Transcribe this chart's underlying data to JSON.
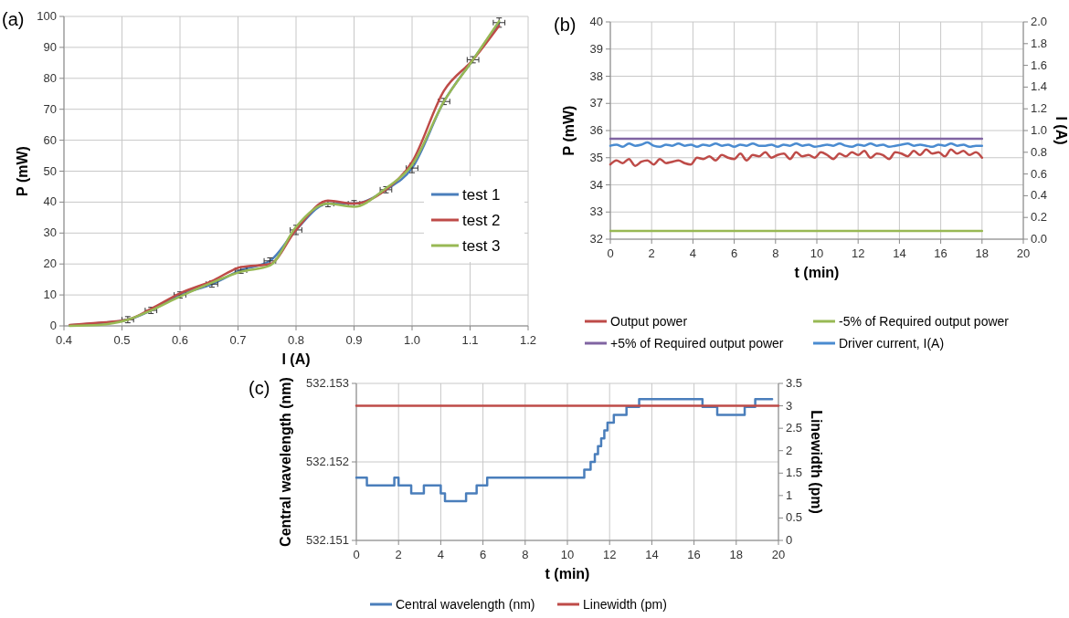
{
  "chart_data": [
    {
      "type": "line",
      "title": "(a)",
      "xlabel": "I (A)",
      "ylabel": "P (mW)",
      "xlim": [
        0.4,
        1.2
      ],
      "xticks": [
        0.4,
        0.5,
        0.6,
        0.7,
        0.8,
        0.9,
        {
          "value": 1,
          "label": "1.0"
        },
        1.1,
        1.2
      ],
      "ylim": [
        0,
        100
      ],
      "yticks": [
        0,
        10,
        20,
        30,
        40,
        50,
        60,
        70,
        80,
        90,
        100
      ],
      "grid": true,
      "legend": "bottom right",
      "x": [
        0.41,
        0.46,
        0.51,
        0.55,
        0.6,
        0.655,
        0.705,
        0.755,
        0.8,
        0.855,
        0.9,
        0.955,
        1.0,
        1.055,
        1.105,
        1.15
      ],
      "series": [
        {
          "name": "test 1",
          "color": "#4a7ebb",
          "values": [
            0.2,
            0.9,
            2,
            5,
            10,
            13.5,
            18,
            21,
            31,
            39.5,
            39.5,
            44,
            51,
            72.5,
            86,
            98
          ],
          "errors": [
            null,
            null,
            1,
            1,
            1,
            1,
            1,
            1,
            1.5,
            1,
            1,
            1,
            1.5,
            1,
            1,
            1.5
          ],
          "xerrors": [
            null,
            null,
            0.01,
            0.01,
            0.01,
            0.01,
            0.01,
            0.01,
            0.01,
            0.01,
            0.01,
            0.01,
            0.01,
            0.01,
            0.01,
            0.01
          ]
        },
        {
          "name": "test 2",
          "color": "#be4b48",
          "values": [
            0.3,
            1,
            2,
            5.5,
            10.5,
            14.5,
            19,
            20,
            31,
            40.5,
            39.5,
            44,
            53,
            76,
            86,
            97
          ]
        },
        {
          "name": "test 3",
          "color": "#98b954",
          "values": [
            0,
            0.3,
            2,
            5,
            9.5,
            14,
            17.5,
            19.5,
            32,
            39.5,
            38.5,
            44.5,
            52,
            72.5,
            86,
            98.5
          ]
        }
      ]
    },
    {
      "type": "line",
      "title": "(b)",
      "xlabel": "t (min)",
      "ylabel": "P (mW)",
      "y2label": "I (A)",
      "xlim": [
        0,
        20
      ],
      "xticks": [
        0,
        2,
        4,
        6,
        8,
        10,
        12,
        14,
        16,
        18,
        20
      ],
      "ylim": [
        32,
        40
      ],
      "yticks": [
        32,
        33,
        34,
        35,
        36,
        37,
        38,
        39,
        40
      ],
      "y2lim": [
        0,
        2
      ],
      "y2ticks": [
        {
          "value": 0,
          "label": "0.0"
        },
        0.2,
        0.4,
        0.6,
        0.8,
        {
          "value": 1,
          "label": "1.0"
        },
        1.2,
        1.4,
        1.6,
        1.8,
        {
          "value": 2,
          "label": "2.0"
        }
      ],
      "grid": true,
      "legend": "bottom",
      "x": [
        0,
        0.3,
        0.6,
        0.9,
        1.2,
        1.5,
        1.8,
        2.1,
        2.4,
        2.7,
        3,
        3.3,
        3.6,
        3.9,
        4.2,
        4.5,
        4.8,
        5.1,
        5.4,
        5.7,
        6,
        6.3,
        6.6,
        6.9,
        7.2,
        7.5,
        7.8,
        8.1,
        8.4,
        8.7,
        9,
        9.3,
        9.6,
        9.9,
        10.2,
        10.5,
        10.8,
        11.1,
        11.4,
        11.7,
        12,
        12.3,
        12.6,
        12.9,
        13.2,
        13.5,
        13.8,
        14.1,
        14.4,
        14.7,
        15,
        15.3,
        15.6,
        15.9,
        16.2,
        16.5,
        16.8,
        17.1,
        17.4,
        17.7,
        18
      ],
      "series": [
        {
          "name": "Output power",
          "color": "#be4b48",
          "values": [
            34.75,
            34.9,
            34.8,
            34.95,
            34.7,
            34.85,
            34.9,
            34.75,
            34.95,
            34.8,
            34.85,
            34.9,
            34.8,
            34.75,
            35.0,
            34.95,
            35.05,
            34.9,
            35.1,
            35.0,
            34.95,
            35.15,
            34.9,
            35.1,
            35.05,
            35.2,
            35.0,
            35.1,
            35.15,
            34.95,
            35.2,
            35.05,
            35.1,
            35.0,
            35.2,
            35.1,
            34.95,
            35.15,
            35.05,
            35.2,
            35.1,
            35.25,
            35.0,
            35.15,
            35.1,
            34.95,
            35.2,
            35.15,
            35.05,
            35.25,
            35.1,
            35.3,
            35.15,
            35.2,
            35.05,
            35.3,
            35.15,
            35.25,
            35.1,
            35.2,
            35.0
          ]
        },
        {
          "name": "-5% of Required output power",
          "color": "#98b954",
          "x": [
            0,
            18
          ],
          "values": [
            32.3,
            32.3
          ]
        },
        {
          "name": "+5% of Required output power",
          "color": "#8064a2",
          "x": [
            0,
            18
          ],
          "values": [
            35.7,
            35.7
          ]
        },
        {
          "name": "Driver current, I(A)",
          "color": "#4a8bd0",
          "axis": "y2",
          "values": [
            0.86,
            0.87,
            0.85,
            0.88,
            0.86,
            0.87,
            0.89,
            0.86,
            0.85,
            0.87,
            0.86,
            0.88,
            0.86,
            0.87,
            0.85,
            0.87,
            0.86,
            0.88,
            0.86,
            0.87,
            0.85,
            0.87,
            0.86,
            0.88,
            0.86,
            0.86,
            0.87,
            0.85,
            0.87,
            0.86,
            0.88,
            0.86,
            0.87,
            0.85,
            0.86,
            0.87,
            0.86,
            0.88,
            0.86,
            0.85,
            0.87,
            0.86,
            0.88,
            0.86,
            0.87,
            0.85,
            0.86,
            0.87,
            0.88,
            0.86,
            0.87,
            0.86,
            0.85,
            0.87,
            0.86,
            0.88,
            0.86,
            0.87,
            0.85,
            0.86,
            0.86
          ]
        }
      ]
    },
    {
      "type": "step",
      "title": "(c)",
      "xlabel": "t (min)",
      "ylabel": "Central wavelength (nm)",
      "y2label": "Linewidth (pm)",
      "xlim": [
        0,
        20
      ],
      "xticks": [
        0,
        2,
        4,
        6,
        8,
        10,
        12,
        14,
        16,
        18,
        20
      ],
      "ylim": [
        532.151,
        532.153
      ],
      "yticks": [
        532.151,
        532.152,
        532.153
      ],
      "y2lim": [
        0,
        3.5
      ],
      "y2ticks": [
        0,
        0.5,
        1,
        1.5,
        2,
        2.5,
        3,
        3.5
      ],
      "grid": true,
      "legend": "bottom",
      "series": [
        {
          "name": "Central wavelength (nm)",
          "color": "#4a7ebb",
          "x": [
            0,
            0.5,
            1.8,
            2.0,
            2.6,
            3.2,
            4.0,
            4.2,
            5.2,
            5.7,
            6.2,
            10.8,
            11.1,
            11.3,
            11.45,
            11.6,
            11.75,
            11.9,
            12.2,
            12.8,
            13.4,
            16.4,
            17.1,
            18.4,
            18.9,
            19.7
          ],
          "values": [
            532.1518,
            532.1517,
            532.1518,
            532.1517,
            532.1516,
            532.1517,
            532.1516,
            532.1515,
            532.1516,
            532.1517,
            532.1518,
            532.1519,
            532.152,
            532.1521,
            532.1522,
            532.1523,
            532.1524,
            532.1525,
            532.1526,
            532.1527,
            532.1528,
            532.1527,
            532.1526,
            532.1527,
            532.1528,
            532.1528
          ]
        },
        {
          "name": "Linewidth (pm)",
          "color": "#be4b48",
          "type": "line",
          "axis": "y2",
          "x": [
            0,
            20
          ],
          "values": [
            3,
            3
          ]
        }
      ]
    }
  ]
}
